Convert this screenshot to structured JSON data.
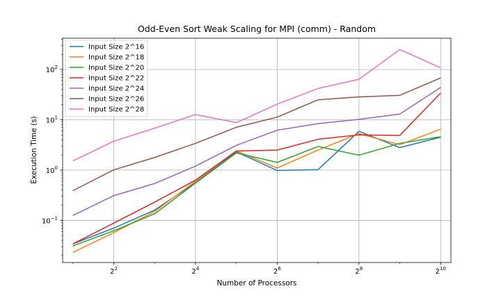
{
  "chart_data": {
    "type": "line",
    "title": "Odd-Even Sort Weak Scaling for MPI (comm) - Random",
    "xlabel": "Number of Processors",
    "ylabel": "Execution Time (s)",
    "x_scale": "log2",
    "y_scale": "log10",
    "x": [
      2,
      4,
      8,
      16,
      32,
      64,
      128,
      256,
      512,
      1024
    ],
    "xlim": [
      1.68,
      1218
    ],
    "ylim": [
      0.0145,
      420
    ],
    "x_ticks": [
      {
        "value": 4,
        "base": "2",
        "exp": "2"
      },
      {
        "value": 16,
        "base": "2",
        "exp": "4"
      },
      {
        "value": 64,
        "base": "2",
        "exp": "6"
      },
      {
        "value": 256,
        "base": "2",
        "exp": "8"
      },
      {
        "value": 1024,
        "base": "2",
        "exp": "10"
      }
    ],
    "y_ticks": [
      {
        "value": 0.1,
        "base": "10",
        "exp": "−1"
      },
      {
        "value": 1,
        "base": "10",
        "exp": "0"
      },
      {
        "value": 10,
        "base": "10",
        "exp": "1"
      },
      {
        "value": 100,
        "base": "10",
        "exp": "2"
      }
    ],
    "grid": true,
    "legend_position": "top-left",
    "series": [
      {
        "name": "Input Size 2^16",
        "color": "#1f77b4",
        "values": [
          0.034,
          0.07,
          0.16,
          0.56,
          2.3,
          0.98,
          1.02,
          5.9,
          2.8,
          4.5
        ]
      },
      {
        "name": "Input Size 2^18",
        "color": "#ff7f0e",
        "values": [
          0.023,
          0.057,
          0.15,
          0.6,
          2.4,
          1.1,
          2.5,
          5.3,
          3.2,
          6.5
        ]
      },
      {
        "name": "Input Size 2^20",
        "color": "#2ca02c",
        "values": [
          0.031,
          0.062,
          0.135,
          0.55,
          2.2,
          1.42,
          2.95,
          1.98,
          3.4,
          4.6
        ]
      },
      {
        "name": "Input Size 2^22",
        "color": "#d62728",
        "values": [
          0.034,
          0.088,
          0.23,
          0.63,
          2.4,
          2.5,
          4.1,
          5.0,
          4.9,
          34.0
        ]
      },
      {
        "name": "Input Size 2^24",
        "color": "#9467bd",
        "values": [
          0.125,
          0.31,
          0.54,
          1.2,
          3.1,
          6.2,
          8.4,
          10.2,
          13.0,
          44.0
        ]
      },
      {
        "name": "Input Size 2^26",
        "color": "#8c564b",
        "values": [
          0.39,
          1.01,
          1.78,
          3.4,
          7.1,
          11.3,
          25.0,
          28.5,
          30.7,
          68.0
        ]
      },
      {
        "name": "Input Size 2^28",
        "color": "#e377c2",
        "values": [
          1.52,
          3.75,
          6.8,
          12.7,
          8.8,
          20.5,
          42.0,
          64.0,
          250.0,
          108.0
        ]
      }
    ]
  }
}
